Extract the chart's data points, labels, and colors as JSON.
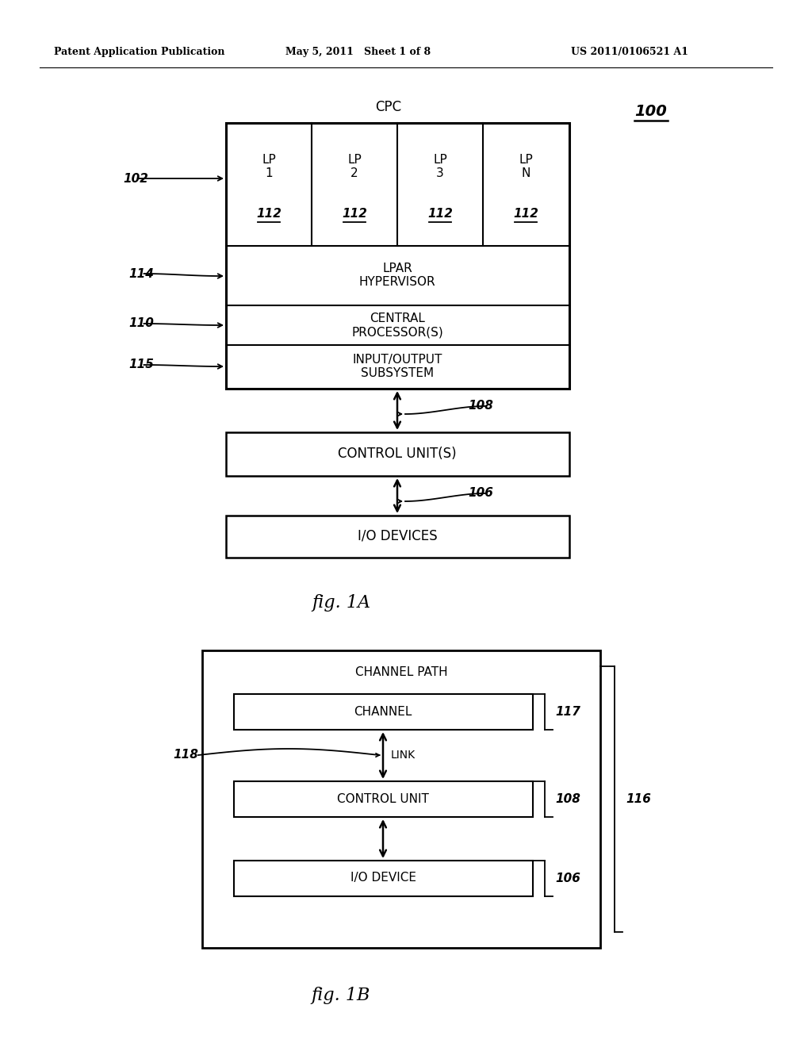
{
  "bg_color": "#ffffff",
  "header_text": "Patent Application Publication",
  "header_date": "May 5, 2011   Sheet 1 of 8",
  "header_patent": "US 2011/0106521 A1",
  "fig1a_label": "fig. 1A",
  "fig1b_label": "fig. 1B",
  "cpc_label": "CPC",
  "ref_100": "100",
  "ref_102": "102",
  "ref_114": "114",
  "ref_110": "110",
  "ref_115": "115",
  "ref_108_top": "108",
  "ref_106_top": "106",
  "lp_labels": [
    "LP\n1",
    "LP\n2",
    "LP\n3",
    "LP\nN"
  ],
  "lp_112": "112",
  "lpar_text": "LPAR\nHYPERVISOR",
  "central_text": "CENTRAL\nPROCESSOR(S)",
  "io_sub_text": "INPUT/OUTPUT\nSUBSYSTEM",
  "control_unit_text": "CONTROL UNIT(S)",
  "io_devices_text": "I/O DEVICES",
  "channel_path_text": "CHANNEL PATH",
  "channel_text": "CHANNEL",
  "link_text": "LINK",
  "control_unit2_text": "CONTROL UNIT",
  "io_device2_text": "I/O DEVICE",
  "ref_116": "116",
  "ref_117": "117",
  "ref_118": "118",
  "ref_108b": "108",
  "ref_106b": "106"
}
